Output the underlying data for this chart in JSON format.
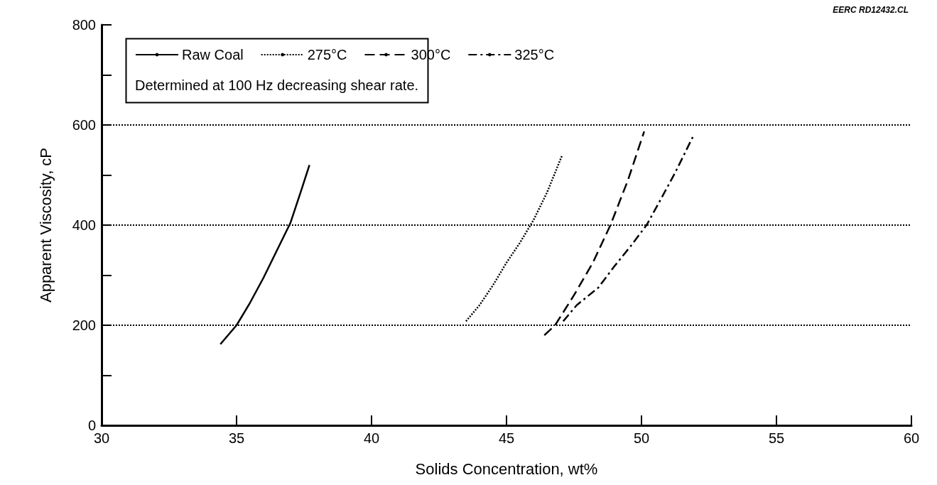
{
  "chart_data": {
    "type": "line",
    "xlabel": "Solids Concentration, wt%",
    "ylabel": "Apparent Viscosity, cP",
    "annotations": [
      "EERC RD12432.CL",
      "Determined at 100 Hz decreasing shear rate."
    ],
    "xlim": [
      30,
      60
    ],
    "xticks": [
      30,
      35,
      40,
      45,
      50,
      55,
      60
    ],
    "ylim": [
      0,
      800
    ],
    "yticks": [
      0,
      {
        "value": 100,
        "label": null
      },
      200,
      {
        "value": 300,
        "label": null
      },
      400,
      {
        "value": 500,
        "label": null
      },
      600,
      {
        "value": 700,
        "label": null
      },
      800
    ],
    "legend": "top left",
    "marker": "none",
    "ref_lines": [
      {
        "axis": "y",
        "value": 200,
        "color": "#000000",
        "line_style": "dotted"
      },
      {
        "axis": "y",
        "value": 400,
        "color": "#000000",
        "line_style": "dotted"
      },
      {
        "axis": "y",
        "value": 600,
        "color": "#000000",
        "line_style": "dotted"
      }
    ],
    "series": [
      {
        "name": "Raw Coal",
        "color": "#000000",
        "line_style": "solid",
        "x": [
          34.4,
          35,
          35.5,
          36,
          36.5,
          37,
          37.4,
          37.7
        ],
        "values": [
          162,
          200,
          245,
          295,
          350,
          405,
          470,
          520
        ]
      },
      {
        "name": "275°C",
        "color": "#000000",
        "line_style": "dotted",
        "x": [
          43.5,
          44,
          44.5,
          45,
          45.5,
          46,
          46.5,
          47.05
        ],
        "values": [
          208,
          240,
          280,
          325,
          365,
          410,
          465,
          538
        ]
      },
      {
        "name": "300°C",
        "color": "#000000",
        "line_style": "dashed",
        "x": [
          46.4,
          46.8,
          47.5,
          48.2,
          48.85,
          49.5,
          50.1
        ],
        "values": [
          180,
          200,
          260,
          325,
          400,
          490,
          587
        ]
      },
      {
        "name": "325°C",
        "color": "#000000",
        "line_style": "dashdot",
        "x": [
          47.1,
          47.6,
          48.4,
          49.0,
          49.6,
          50.2,
          50.7,
          51.25,
          51.9
        ],
        "values": [
          208,
          240,
          275,
          318,
          358,
          401,
          450,
          505,
          576
        ]
      }
    ]
  }
}
